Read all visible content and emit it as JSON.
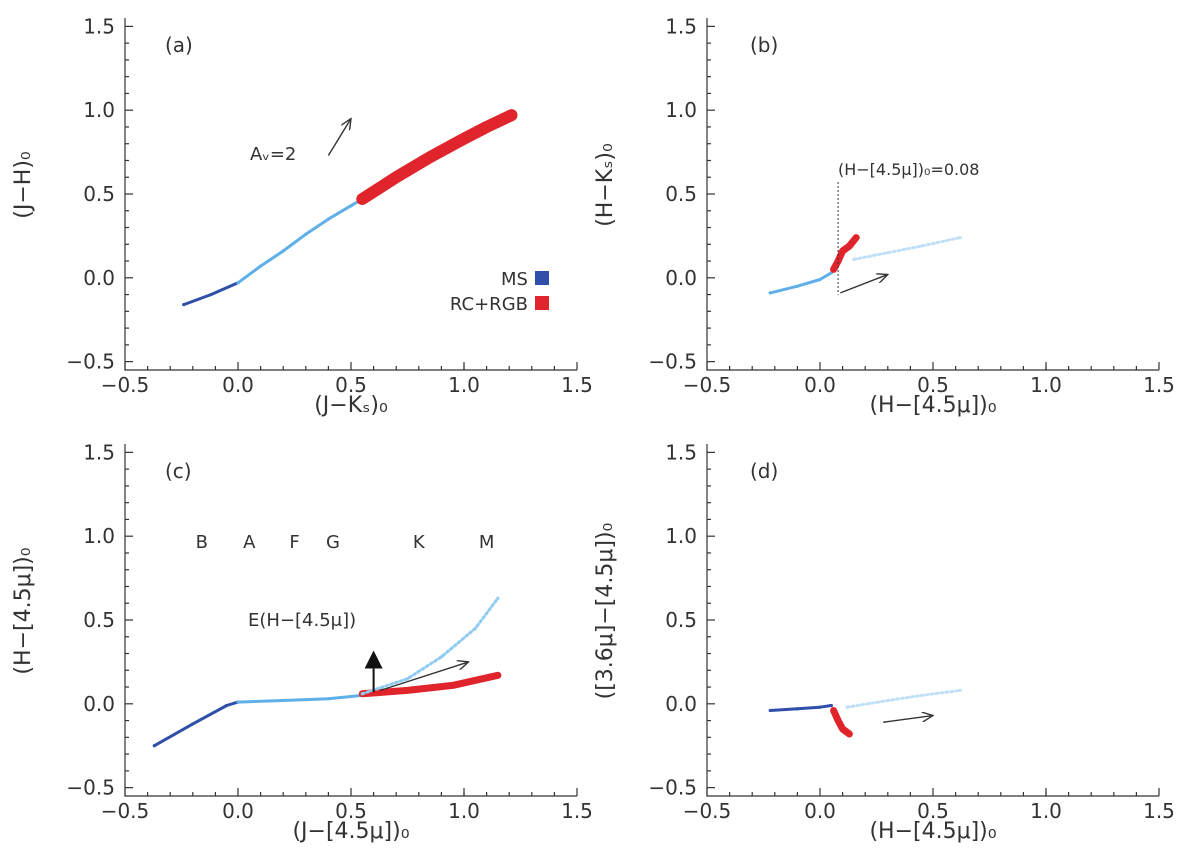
{
  "chart_data": [
    {
      "type": "scatter",
      "panel_label": "(a)",
      "xlabel": "(J−Kₛ)₀",
      "ylabel": "(J−H)₀",
      "xlim": [
        -0.5,
        1.5
      ],
      "ylim": [
        -0.55,
        1.55
      ],
      "xticks": [
        "−0.5",
        "0.0",
        "0.5",
        "1.0",
        "1.5"
      ],
      "yticks": [
        "−0.5",
        "0.0",
        "0.5",
        "1.0",
        "1.5"
      ],
      "legend": {
        "placement": "lower-right",
        "entries": [
          {
            "label": "MS",
            "color": "#2f4fa8"
          },
          {
            "label": "RC+RGB",
            "color": "#e0242b"
          }
        ]
      },
      "reddening_vector": {
        "label": "Aᵥ=2",
        "from": [
          0.4,
          0.73
        ],
        "to": [
          0.5,
          0.95
        ]
      },
      "series": [
        {
          "name": "MS",
          "color": "#2f4fa8",
          "x": [
            -0.24,
            -0.12,
            0.0
          ],
          "y": [
            -0.16,
            -0.1,
            -0.03
          ]
        },
        {
          "name": "MS",
          "color": "#5fb0e8",
          "x": [
            0.0,
            0.1,
            0.2,
            0.3,
            0.4,
            0.5,
            0.55
          ],
          "y": [
            -0.03,
            0.07,
            0.16,
            0.26,
            0.35,
            0.43,
            0.47
          ]
        },
        {
          "name": "RC+RGB",
          "color": "#e0242b",
          "x": [
            0.55,
            0.7,
            0.85,
            1.0,
            1.1,
            1.21
          ],
          "y": [
            0.47,
            0.6,
            0.72,
            0.83,
            0.9,
            0.97
          ]
        }
      ]
    },
    {
      "type": "scatter",
      "panel_label": "(b)",
      "xlabel": "(H−[4.5μ])₀",
      "ylabel": "(H−Kₛ)₀",
      "xlim": [
        -0.5,
        1.5
      ],
      "ylim": [
        -0.55,
        1.55
      ],
      "xticks": [
        "−0.5",
        "0.0",
        "0.5",
        "1.0",
        "1.5"
      ],
      "yticks": [
        "−0.5",
        "0.0",
        "0.5",
        "1.0",
        "1.5"
      ],
      "annotation": {
        "text": "(H−[4.5μ])₀=0.08",
        "x": 0.08
      },
      "reddening_vector": {
        "from": [
          0.09,
          -0.09
        ],
        "to": [
          0.3,
          0.02
        ]
      },
      "series": [
        {
          "name": "MS",
          "color": "#5fb0e8",
          "x": [
            -0.22,
            -0.1,
            0.0,
            0.05
          ],
          "y": [
            -0.09,
            -0.05,
            -0.01,
            0.03
          ]
        },
        {
          "name": "RC+RGB",
          "color": "#e0242b",
          "x": [
            0.06,
            0.08,
            0.1,
            0.13,
            0.16
          ],
          "y": [
            0.05,
            0.1,
            0.16,
            0.19,
            0.24
          ]
        },
        {
          "name": "faint",
          "color": "#bfe0f5",
          "x": [
            0.15,
            0.3,
            0.45,
            0.62
          ],
          "y": [
            0.11,
            0.15,
            0.19,
            0.24
          ]
        }
      ]
    },
    {
      "type": "scatter",
      "panel_label": "(c)",
      "xlabel": "(J−[4.5μ])₀",
      "ylabel": "(H−[4.5μ])₀",
      "xlim": [
        -0.5,
        1.5
      ],
      "ylim": [
        -0.55,
        1.55
      ],
      "xticks": [
        "−0.5",
        "0.0",
        "0.5",
        "1.0",
        "1.5"
      ],
      "yticks": [
        "−0.5",
        "0.0",
        "0.5",
        "1.0",
        "1.5"
      ],
      "spectral_types": [
        {
          "label": "B",
          "x": -0.16
        },
        {
          "label": "A",
          "x": 0.05
        },
        {
          "label": "F",
          "x": 0.25
        },
        {
          "label": "G",
          "x": 0.42
        },
        {
          "label": "K",
          "x": 0.8
        },
        {
          "label": "M",
          "x": 1.1
        }
      ],
      "spectral_y": 0.93,
      "excess_label": "E(H−[4.5μ])",
      "excess_marker": [
        0.6,
        0.27
      ],
      "reddening_vector": {
        "from": [
          0.63,
          0.08
        ],
        "to": [
          1.02,
          0.25
        ]
      },
      "series": [
        {
          "name": "MS",
          "color": "#2f4fa8",
          "x": [
            -0.37,
            -0.2,
            -0.05,
            0.0
          ],
          "y": [
            -0.25,
            -0.12,
            -0.01,
            0.01
          ]
        },
        {
          "name": "MS",
          "color": "#5fb0e8",
          "x": [
            0.0,
            0.2,
            0.4,
            0.55
          ],
          "y": [
            0.01,
            0.02,
            0.03,
            0.05
          ]
        },
        {
          "name": "RC+RGB",
          "color": "#e0242b",
          "x": [
            0.55,
            0.75,
            0.95,
            1.15
          ],
          "y": [
            0.06,
            0.08,
            0.11,
            0.17
          ]
        },
        {
          "name": "faint",
          "color": "#8ecbf0",
          "x": [
            0.55,
            0.75,
            0.9,
            1.05,
            1.15
          ],
          "y": [
            0.06,
            0.15,
            0.28,
            0.45,
            0.63
          ]
        }
      ]
    },
    {
      "type": "scatter",
      "panel_label": "(d)",
      "xlabel": "(H−[4.5μ])₀",
      "ylabel": "([3.6μ]−[4.5μ])₀",
      "xlim": [
        -0.5,
        1.5
      ],
      "ylim": [
        -0.55,
        1.55
      ],
      "xticks": [
        "−0.5",
        "0.0",
        "0.5",
        "1.0",
        "1.5"
      ],
      "yticks": [
        "−0.5",
        "0.0",
        "0.5",
        "1.0",
        "1.5"
      ],
      "reddening_vector": {
        "from": [
          0.28,
          -0.11
        ],
        "to": [
          0.5,
          -0.07
        ]
      },
      "series": [
        {
          "name": "MS",
          "color": "#2f4fa8",
          "x": [
            -0.22,
            -0.1,
            0.0,
            0.05
          ],
          "y": [
            -0.04,
            -0.03,
            -0.02,
            -0.01
          ]
        },
        {
          "name": "RC+RGB",
          "color": "#e0242b",
          "x": [
            0.06,
            0.08,
            0.1,
            0.13
          ],
          "y": [
            -0.04,
            -0.1,
            -0.15,
            -0.18
          ]
        },
        {
          "name": "faint",
          "color": "#bfe0f5",
          "x": [
            0.12,
            0.3,
            0.45,
            0.62
          ],
          "y": [
            -0.02,
            0.02,
            0.05,
            0.08
          ]
        }
      ]
    }
  ]
}
